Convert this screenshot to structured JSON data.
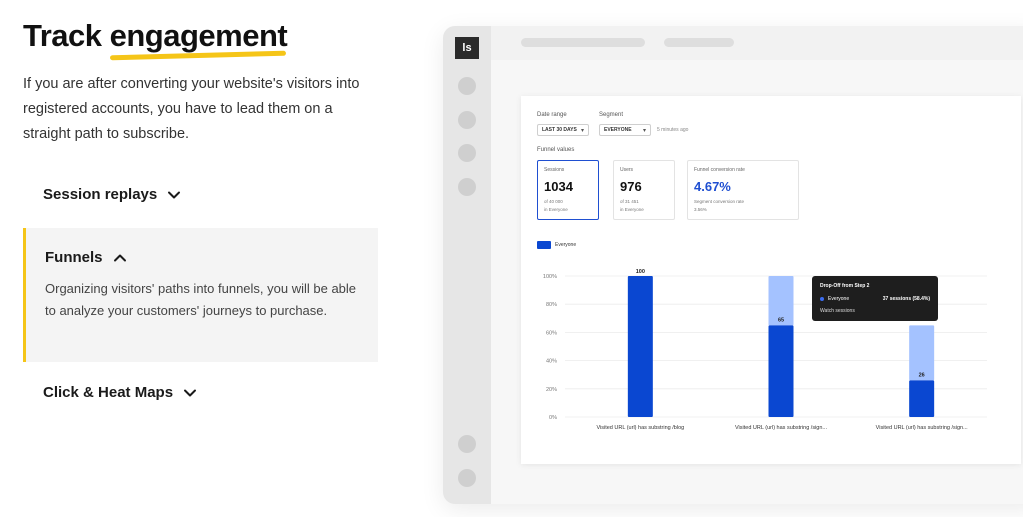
{
  "heading": {
    "prefix": "Track ",
    "highlight": "engagement"
  },
  "intro": "If you are after converting your website's visitors into registered accounts, you have to lead them on a straight path to subscribe.",
  "accordion": {
    "items": [
      {
        "title": "Session replays",
        "expanded": false
      },
      {
        "title": "Funnels",
        "expanded": true,
        "body": "Organizing visitors' paths into funnels, you will be able to analyze your customers' journeys to purchase."
      },
      {
        "title": "Click & Heat Maps",
        "expanded": false
      }
    ]
  },
  "app": {
    "logo": "ls",
    "filters": {
      "date_label": "Date range",
      "date_value": "LAST 30 DAYS",
      "segment_label": "Segment",
      "segment_value": "EVERYONE",
      "updated": "5 minutes ago"
    },
    "funnel_values_label": "Funnel values",
    "metrics": [
      {
        "label": "Sessions",
        "value": "1034",
        "sub1": "of 40 000",
        "sub2": "in Everyone",
        "active": true
      },
      {
        "label": "Users",
        "value": "976",
        "sub1": "of 31 451",
        "sub2": "in Everyone",
        "active": false
      },
      {
        "label": "Funnel conversion rate",
        "value": "4.67%",
        "sub1": "Segment conversion rate",
        "sub2": "3.56%",
        "active": false
      }
    ],
    "legend": "Everyone",
    "tooltip": {
      "title": "Drop-Off from Step 2",
      "series": "Everyone",
      "value": "37 sessions (58.4%)",
      "link": "Watch sessions"
    }
  },
  "colors": {
    "accent": "#f5c518",
    "bar_dark": "#0a47d1",
    "bar_light": "#a4c2ff"
  },
  "chart_data": {
    "type": "bar",
    "categories": [
      "Visited URL (url) has substring /blog",
      "Visited URL (url) has substring /sign...",
      "Visited URL (url) has substring /sign..."
    ],
    "series": [
      {
        "name": "Everyone",
        "values": [
          100,
          65,
          26
        ]
      }
    ],
    "dropoff_values": [
      0,
      35,
      39
    ],
    "data_labels": [
      "100",
      "65",
      "26"
    ],
    "y_ticks": [
      "0%",
      "20%",
      "40%",
      "60%",
      "80%",
      "100%"
    ],
    "ylim": [
      0,
      100
    ],
    "grid": true
  }
}
